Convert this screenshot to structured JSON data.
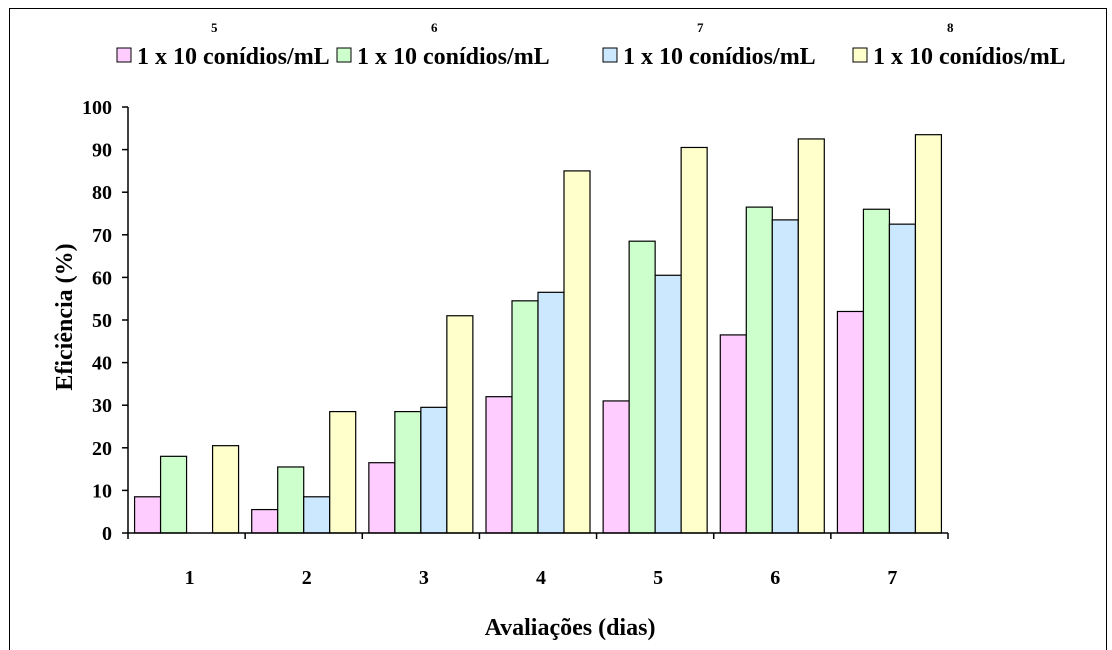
{
  "chart_data": {
    "type": "bar",
    "xlabel": "Avaliações (dias)",
    "ylabel": "Eficiência (%)",
    "ylim": [
      0,
      100
    ],
    "yticks": [
      "0",
      "10",
      "20",
      "30",
      "40",
      "50",
      "60",
      "70",
      "80",
      "90",
      "100"
    ],
    "categories": [
      "1",
      "2",
      "3",
      "4",
      "5",
      "6",
      "7"
    ],
    "grid": false,
    "legend_position": "top",
    "series": [
      {
        "name": "1 x 10 conídios/mL",
        "exponent": "5",
        "color": "#ffccff",
        "values": [
          8.5,
          5.5,
          16.5,
          32,
          31,
          46.5,
          52
        ]
      },
      {
        "name": "1 x 10 conídios/mL",
        "exponent": "6",
        "color": "#ccffcc",
        "values": [
          18,
          15.5,
          28.5,
          54.5,
          68.5,
          76.5,
          76
        ]
      },
      {
        "name": "1 x 10 conídios/mL",
        "exponent": "7",
        "color": "#cce8ff",
        "values": [
          0,
          8.5,
          29.5,
          56.5,
          60.5,
          73.5,
          72.5
        ]
      },
      {
        "name": "1 x 10 conídios/mL",
        "exponent": "8",
        "color": "#ffffcc",
        "values": [
          20.5,
          28.5,
          51,
          85,
          90.5,
          92.5,
          93.5
        ]
      }
    ]
  }
}
